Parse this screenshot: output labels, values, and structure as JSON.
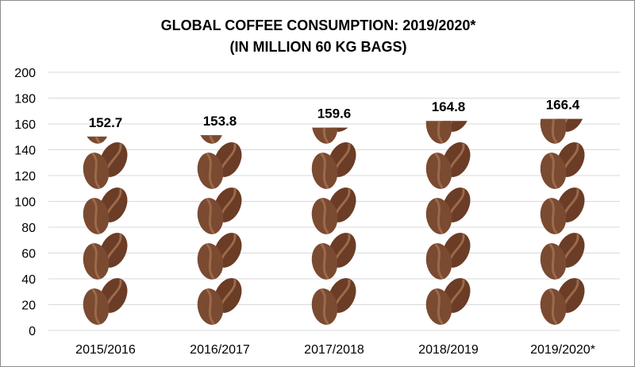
{
  "chart_data": {
    "type": "bar",
    "title_line1": "GLOBAL COFFEE CONSUMPTION: 2019/2020*",
    "title_line2": "(IN MILLION 60 KG BAGS)",
    "categories": [
      "2015/2016",
      "2016/2017",
      "2017/2018",
      "2018/2019",
      "2019/2020*"
    ],
    "values": [
      152.7,
      153.8,
      159.6,
      164.8,
      166.4
    ],
    "data_labels": [
      "152.7",
      "153.8",
      "159.6",
      "164.8",
      "166.4"
    ],
    "xlabel": "",
    "ylabel": "",
    "ylim": [
      0,
      200
    ],
    "yticks": [
      "0",
      "20",
      "40",
      "60",
      "80",
      "100",
      "120",
      "140",
      "160",
      "180",
      "200"
    ],
    "grid": true,
    "legend": "none",
    "bar_style": "stacked coffee bean pictograph",
    "colors": {
      "bean_light": "#7a4a31",
      "bean_dark": "#6b3c26",
      "bean_seam": "#9c6a49",
      "grid": "#d9d9d9",
      "text": "#000000"
    }
  }
}
